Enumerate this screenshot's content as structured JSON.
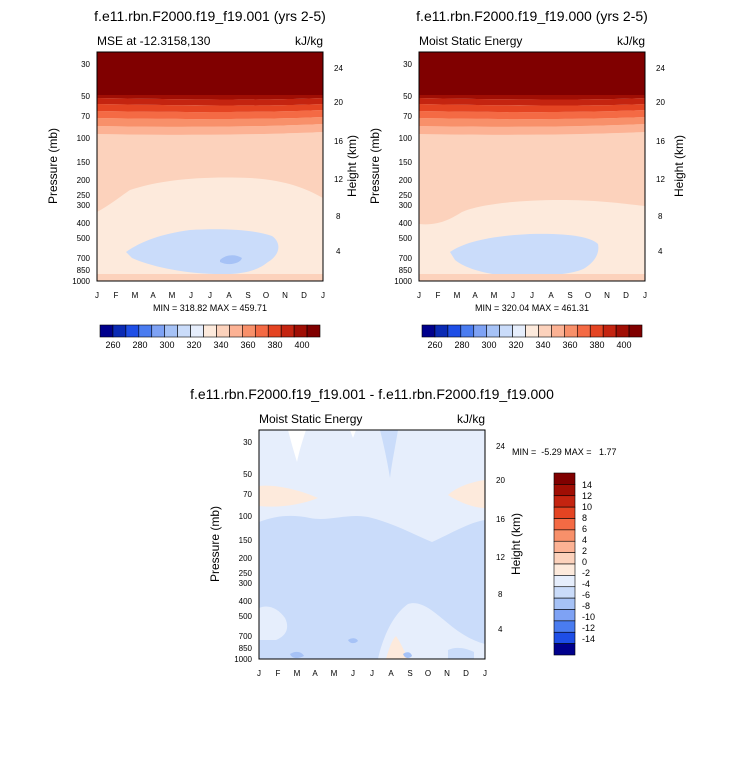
{
  "chart_data": [
    {
      "type": "heatmap",
      "id": "panel-a",
      "title": "f.e11.rbn.F2000.f19_f19.001 (yrs 2-5)",
      "subtitle_left": "MSE at -12.3158,130",
      "subtitle_right": "kJ/kg",
      "ylabel": "Pressure (mb)",
      "ylabel_right": "Height (km)",
      "x_ticks": [
        "J",
        "F",
        "M",
        "A",
        "M",
        "J",
        "J",
        "A",
        "S",
        "O",
        "N",
        "D",
        "J"
      ],
      "y_ticks": [
        30,
        50,
        70,
        100,
        150,
        200,
        250,
        300,
        400,
        500,
        700,
        850,
        1000
      ],
      "ylim": [
        1000,
        20
      ],
      "height_ticks": [
        24,
        20,
        16,
        12,
        8,
        4
      ],
      "stats": "MIN = 318.82 MAX = 459.71",
      "colorbar": {
        "orientation": "horizontal",
        "levels": [
          260,
          280,
          300,
          320,
          340,
          360,
          380,
          400
        ],
        "colors": [
          "#00008c",
          "#0a2ab4",
          "#1e4ee6",
          "#4a7cf0",
          "#7ea2f4",
          "#a6c2f6",
          "#cadcfa",
          "#e6eefc",
          "#fdeadc",
          "#fcd2bc",
          "#fcb294",
          "#f8906a",
          "#f46a44",
          "#e44422",
          "#c42410",
          "#a00e04",
          "#800000"
        ]
      }
    },
    {
      "type": "heatmap",
      "id": "panel-b",
      "title": "f.e11.rbn.F2000.f19_f19.000 (yrs 2-5)",
      "subtitle_left": "Moist Static Energy",
      "subtitle_right": "kJ/kg",
      "ylabel": "Pressure (mb)",
      "ylabel_right": "Height (km)",
      "x_ticks": [
        "J",
        "F",
        "M",
        "A",
        "M",
        "J",
        "J",
        "A",
        "S",
        "O",
        "N",
        "D",
        "J"
      ],
      "y_ticks": [
        30,
        50,
        70,
        100,
        150,
        200,
        250,
        300,
        400,
        500,
        700,
        850,
        1000
      ],
      "ylim": [
        1000,
        20
      ],
      "height_ticks": [
        24,
        20,
        16,
        12,
        8,
        4
      ],
      "stats": "MIN = 320.04 MAX = 461.31",
      "colorbar": {
        "orientation": "horizontal",
        "levels": [
          260,
          280,
          300,
          320,
          340,
          360,
          380,
          400
        ],
        "colors": [
          "#00008c",
          "#0a2ab4",
          "#1e4ee6",
          "#4a7cf0",
          "#7ea2f4",
          "#a6c2f6",
          "#cadcfa",
          "#e6eefc",
          "#fdeadc",
          "#fcd2bc",
          "#fcb294",
          "#f8906a",
          "#f46a44",
          "#e44422",
          "#c42410",
          "#a00e04",
          "#800000"
        ]
      }
    },
    {
      "type": "heatmap",
      "id": "panel-c",
      "title": "f.e11.rbn.F2000.f19_f19.001 - f.e11.rbn.F2000.f19_f19.000",
      "subtitle_left": "Moist Static Energy",
      "subtitle_right": "kJ/kg",
      "ylabel": "Pressure (mb)",
      "ylabel_right": "Height (km)",
      "x_ticks": [
        "J",
        "F",
        "M",
        "A",
        "M",
        "J",
        "J",
        "A",
        "S",
        "O",
        "N",
        "D",
        "J"
      ],
      "y_ticks": [
        30,
        50,
        70,
        100,
        150,
        200,
        250,
        300,
        400,
        500,
        700,
        850,
        1000
      ],
      "ylim": [
        1000,
        20
      ],
      "height_ticks": [
        24,
        20,
        16,
        12,
        8,
        4
      ],
      "stats": "MIN =  -5.29 MAX =   1.77",
      "colorbar": {
        "orientation": "vertical",
        "levels": [
          14,
          12,
          10,
          8,
          6,
          4,
          2,
          0,
          -2,
          -4,
          -6,
          -8,
          -10,
          -12,
          -14
        ],
        "colors": [
          "#800000",
          "#a00e04",
          "#c42410",
          "#e44422",
          "#f46a44",
          "#f8906a",
          "#fcb294",
          "#fcd2bc",
          "#fdeadc",
          "#e6eefc",
          "#cadcfa",
          "#a6c2f6",
          "#7ea2f4",
          "#4a7cf0",
          "#1e4ee6",
          "#00008c"
        ]
      }
    }
  ]
}
